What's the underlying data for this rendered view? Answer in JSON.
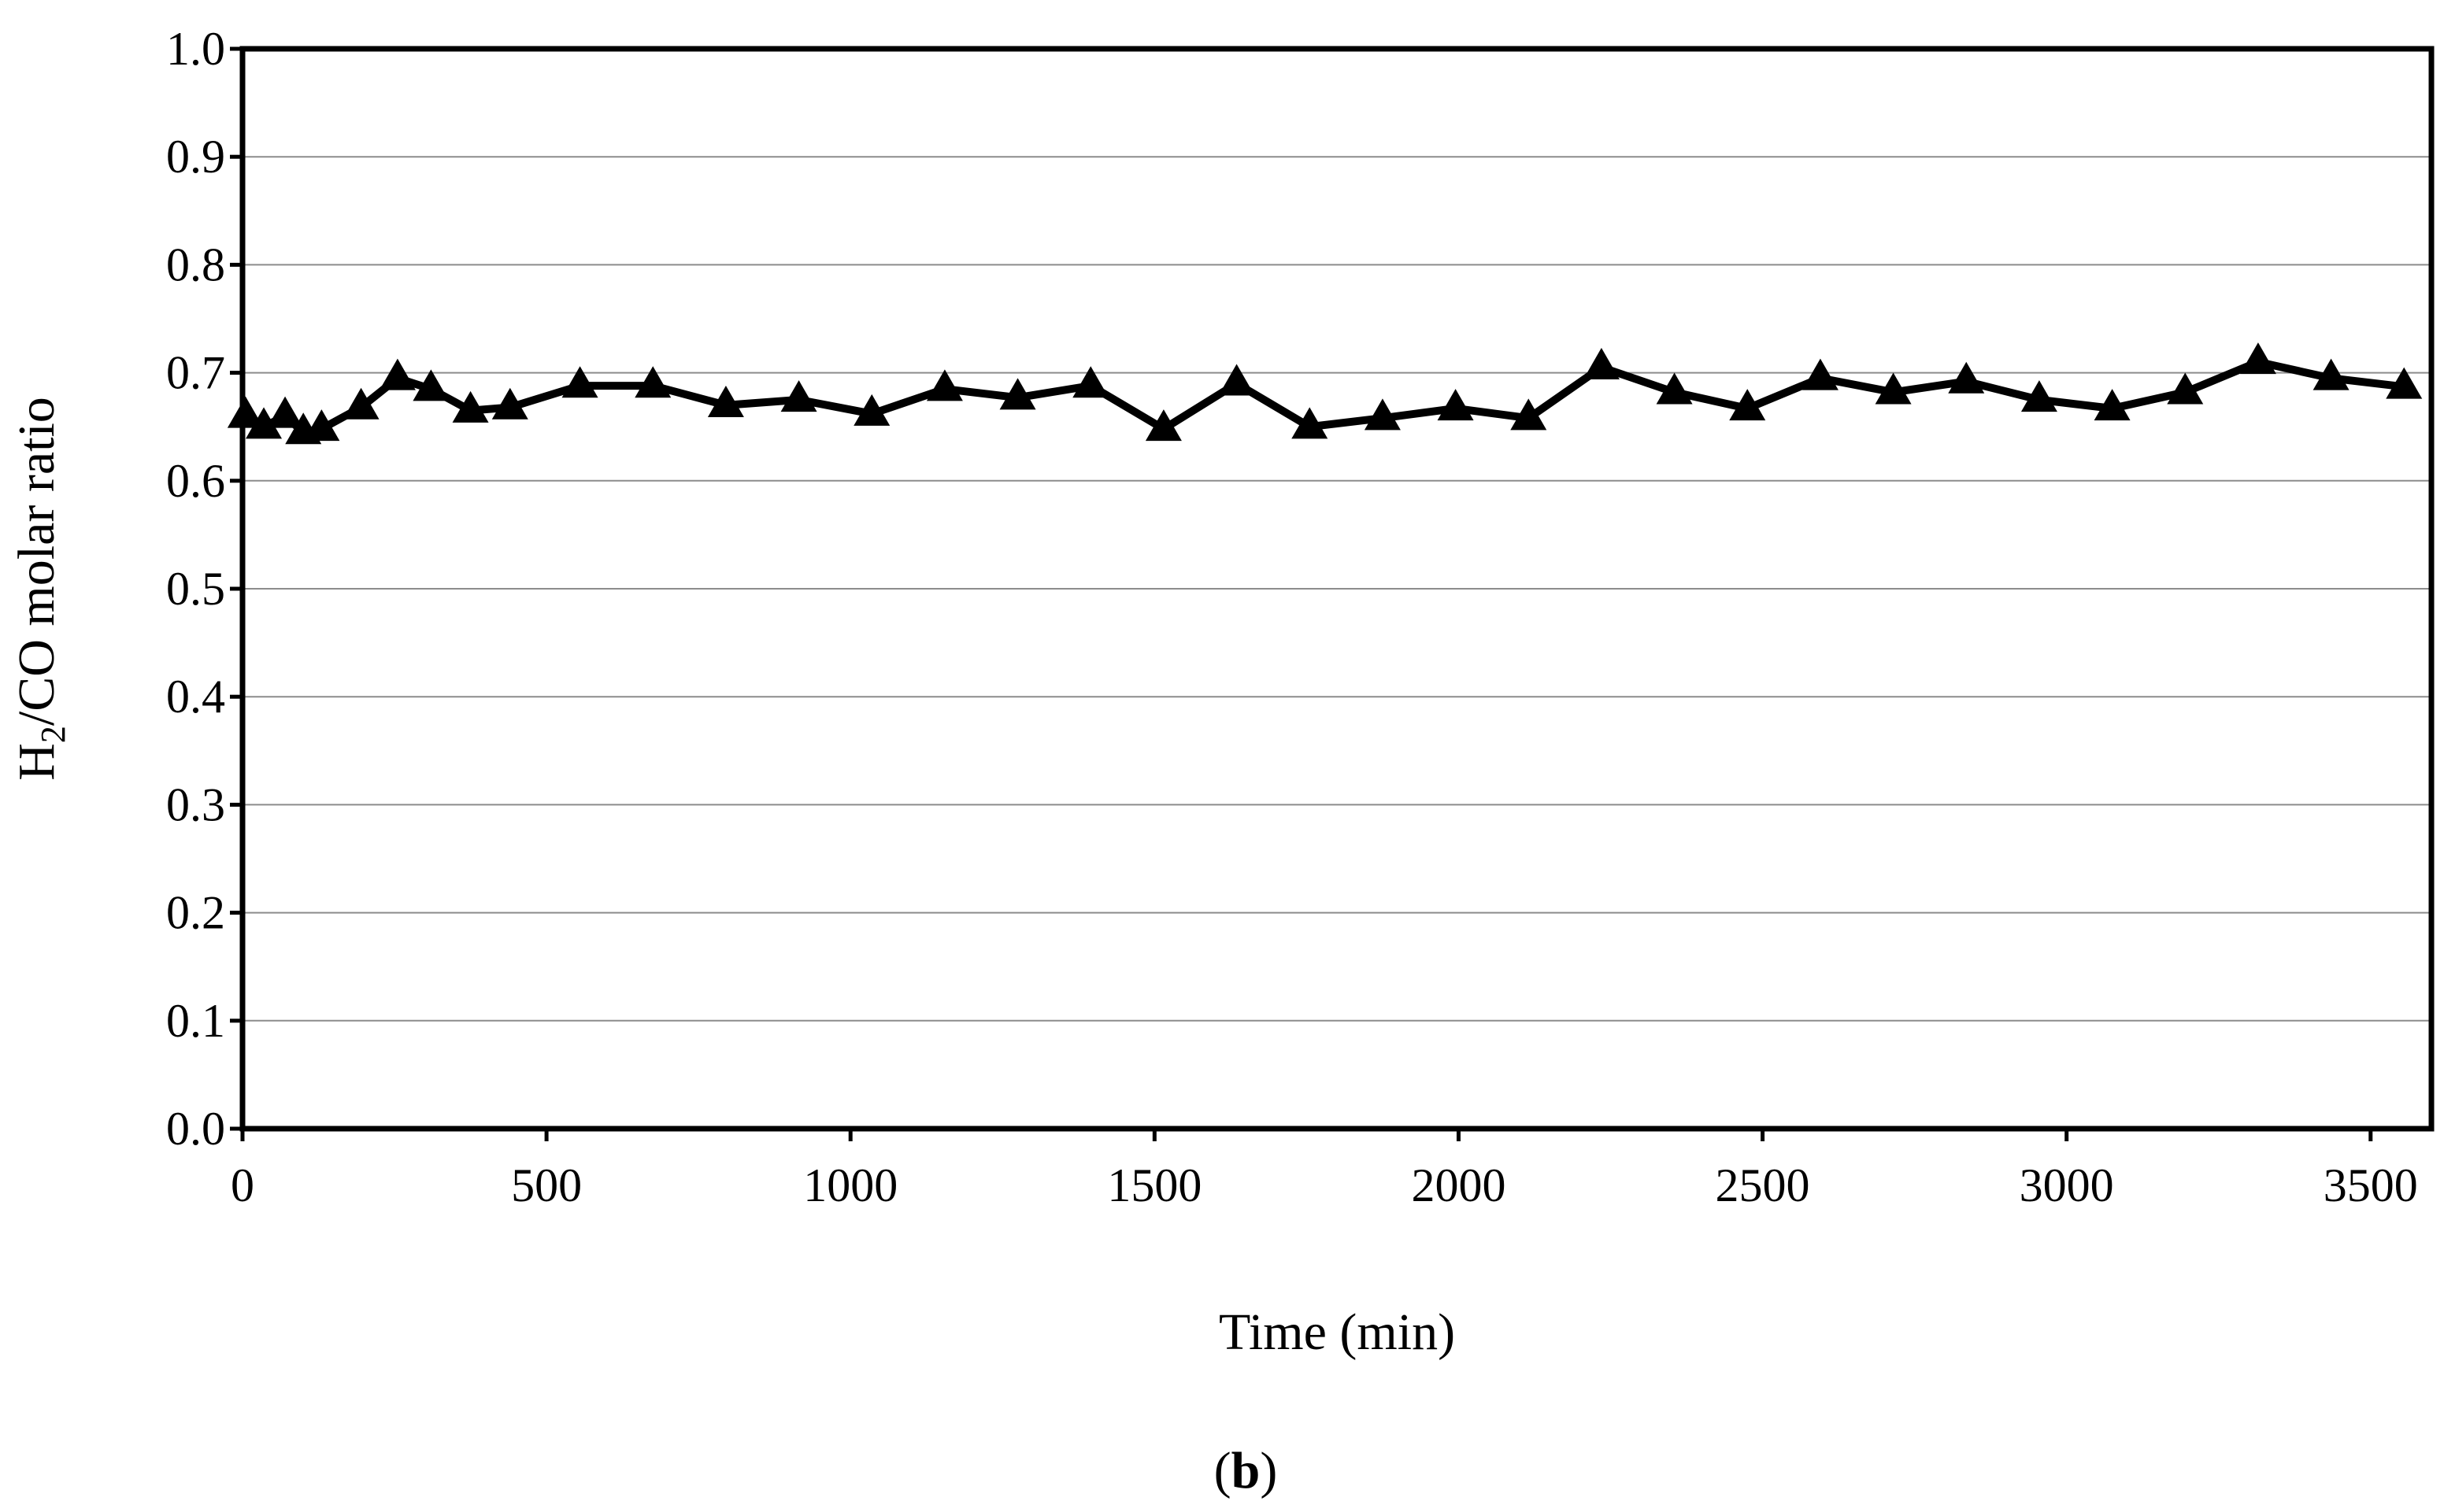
{
  "chart_data": {
    "type": "line",
    "xlabel": "Time (min)",
    "ylabel": {
      "prefix": "H",
      "subscript": "2",
      "suffix": "/CO molar ratio"
    },
    "xlim": [
      0,
      3600
    ],
    "ylim": [
      0.0,
      1.0
    ],
    "x_ticks": [
      0,
      500,
      1000,
      1500,
      2000,
      2500,
      3000,
      3500
    ],
    "y_ticks": [
      "0.0",
      "0.1",
      "0.2",
      "0.3",
      "0.4",
      "0.5",
      "0.6",
      "0.7",
      "0.8",
      "0.9",
      "1.0"
    ],
    "grid": "horizontal",
    "marker": "triangle",
    "line_color": "#000000",
    "series": [
      {
        "x": [
          5,
          35,
          70,
          100,
          130,
          195,
          255,
          310,
          375,
          440,
          555,
          675,
          795,
          915,
          1035,
          1155,
          1275,
          1395,
          1515,
          1635,
          1755,
          1875,
          1995,
          2115,
          2235,
          2355,
          2475,
          2595,
          2715,
          2835,
          2955,
          3075,
          3195,
          3315,
          3435,
          3555
        ],
        "y": [
          0.66,
          0.65,
          0.66,
          0.645,
          0.648,
          0.668,
          0.695,
          0.685,
          0.665,
          0.668,
          0.688,
          0.688,
          0.67,
          0.675,
          0.662,
          0.685,
          0.677,
          0.688,
          0.648,
          0.69,
          0.65,
          0.658,
          0.667,
          0.658,
          0.705,
          0.682,
          0.667,
          0.695,
          0.682,
          0.692,
          0.675,
          0.667,
          0.682,
          0.71,
          0.695,
          0.687
        ]
      }
    ]
  },
  "panel_label": {
    "open": "(",
    "letter": "b",
    "close": ")"
  }
}
